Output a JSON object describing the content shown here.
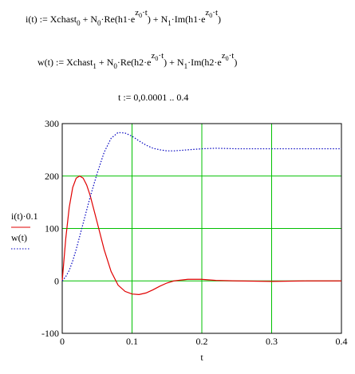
{
  "formulas": [
    {
      "segments": [
        {
          "text": "i(t) := Xchast",
          "level": "base"
        },
        {
          "text": "0",
          "level": "sub"
        },
        {
          "text": " + N",
          "level": "base"
        },
        {
          "text": "0",
          "level": "sub"
        },
        {
          "text": "·Re(h1·e",
          "level": "base"
        },
        {
          "text": "z",
          "level": "sup"
        },
        {
          "text": "0",
          "level": "supsub"
        },
        {
          "text": "·t",
          "level": "sup"
        },
        {
          "text": ") + N",
          "level": "base"
        },
        {
          "text": "1",
          "level": "sub"
        },
        {
          "text": "·Im(h1·e",
          "level": "base"
        },
        {
          "text": "z",
          "level": "sup"
        },
        {
          "text": "0",
          "level": "supsub"
        },
        {
          "text": "·t",
          "level": "sup"
        },
        {
          "text": ")",
          "level": "base"
        }
      ]
    },
    {
      "segments": [
        {
          "text": "w(t) := Xchast",
          "level": "base"
        },
        {
          "text": "1",
          "level": "sub"
        },
        {
          "text": " + N",
          "level": "base"
        },
        {
          "text": "0",
          "level": "sub"
        },
        {
          "text": "·Re(h2·e",
          "level": "base"
        },
        {
          "text": "z",
          "level": "sup"
        },
        {
          "text": "0",
          "level": "supsub"
        },
        {
          "text": "·t",
          "level": "sup"
        },
        {
          "text": ") + N",
          "level": "base"
        },
        {
          "text": "1",
          "level": "sub"
        },
        {
          "text": "·Im(h2·e",
          "level": "base"
        },
        {
          "text": "z",
          "level": "sup"
        },
        {
          "text": "0",
          "level": "supsub"
        },
        {
          "text": "·t",
          "level": "sup"
        },
        {
          "text": ")",
          "level": "base"
        }
      ]
    },
    {
      "segments": [
        {
          "text": "t := 0,0.0001 .. 0.4",
          "level": "base"
        }
      ]
    }
  ],
  "chart_data": {
    "type": "line",
    "x_label": "t",
    "x": [
      0,
      0.005,
      0.01,
      0.015,
      0.02,
      0.025,
      0.03,
      0.035,
      0.04,
      0.05,
      0.06,
      0.07,
      0.08,
      0.09,
      0.1,
      0.11,
      0.12,
      0.13,
      0.14,
      0.15,
      0.16,
      0.18,
      0.2,
      0.22,
      0.25,
      0.3,
      0.35,
      0.4
    ],
    "series": [
      {
        "name": "i(t)·0.1",
        "color": "#e00000",
        "dash": "solid",
        "values": [
          0,
          80,
          140,
          178,
          196,
          200,
          196,
          183,
          163,
          112,
          60,
          18,
          -8,
          -20,
          -25,
          -26,
          -23,
          -17,
          -10,
          -4,
          0,
          3,
          3,
          1,
          0,
          -1,
          0,
          0
        ]
      },
      {
        "name": "w(t)",
        "color": "#0000c0",
        "dash": "dotted",
        "values": [
          0,
          8,
          20,
          38,
          60,
          85,
          110,
          135,
          160,
          205,
          245,
          272,
          283,
          282,
          276,
          267,
          259,
          253,
          250,
          248,
          248,
          250,
          252,
          253,
          252,
          252,
          252,
          252
        ]
      }
    ],
    "xlim": [
      0,
      0.4
    ],
    "xticks": [
      0,
      0.1,
      0.2,
      0.3,
      0.4
    ],
    "ylim": [
      -100,
      300
    ],
    "yticks": [
      -100,
      0,
      100,
      200,
      300
    ],
    "grid": true,
    "grid_color": "#00c000"
  }
}
